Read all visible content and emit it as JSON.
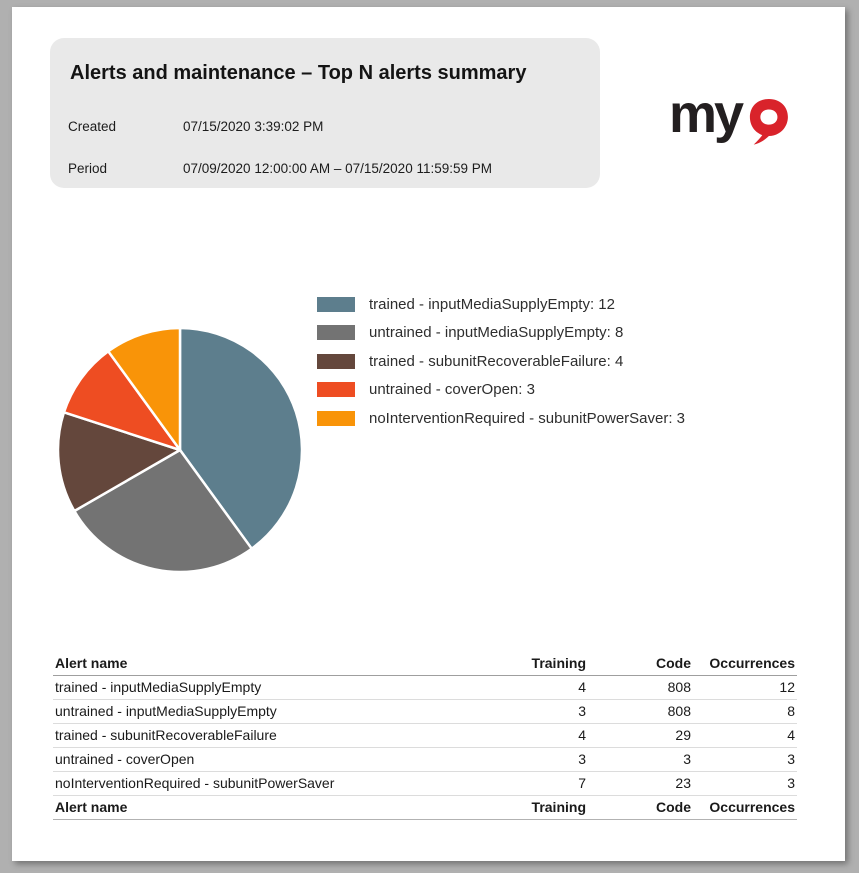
{
  "header": {
    "title": "Alerts and maintenance – Top N alerts summary",
    "created_label": "Created",
    "created_value": "07/15/2020 3:39:02 PM",
    "period_label": "Period",
    "period_value": "07/09/2020 12:00:00 AM – 07/15/2020 11:59:59 PM"
  },
  "logo": {
    "text_black": "my",
    "text_red": "Q",
    "black": "#231f20",
    "red": "#d9232b"
  },
  "chart_data": {
    "type": "pie",
    "title": "",
    "start_angle_deg": -90,
    "direction": "clockwise",
    "total": 30,
    "legend_position": "right",
    "legend_format": "{label}: {value}",
    "slices": [
      {
        "label": "trained - inputMediaSupplyEmpty",
        "value": 12,
        "color": "#5d7e8d"
      },
      {
        "label": "untrained - inputMediaSupplyEmpty",
        "value": 8,
        "color": "#737373"
      },
      {
        "label": "trained - subunitRecoverableFailure",
        "value": 4,
        "color": "#64473c"
      },
      {
        "label": "untrained - coverOpen",
        "value": 3,
        "color": "#ee4d22"
      },
      {
        "label": "noInterventionRequired - subunitPowerSaver",
        "value": 3,
        "color": "#f99408"
      }
    ]
  },
  "table": {
    "columns": [
      {
        "label": "Alert name",
        "align": "left"
      },
      {
        "label": "Training",
        "align": "right"
      },
      {
        "label": "Code",
        "align": "right"
      },
      {
        "label": "Occurrences",
        "align": "right"
      }
    ],
    "rows": [
      [
        "trained - inputMediaSupplyEmpty",
        "4",
        "808",
        "12"
      ],
      [
        "untrained - inputMediaSupplyEmpty",
        "3",
        "808",
        "8"
      ],
      [
        "trained - subunitRecoverableFailure",
        "4",
        "29",
        "4"
      ],
      [
        "untrained - coverOpen",
        "3",
        "3",
        "3"
      ],
      [
        "noInterventionRequired - subunitPowerSaver",
        "7",
        "23",
        "3"
      ]
    ],
    "footer": [
      "Alert name",
      "Training",
      "Code",
      "Occurrences"
    ]
  }
}
